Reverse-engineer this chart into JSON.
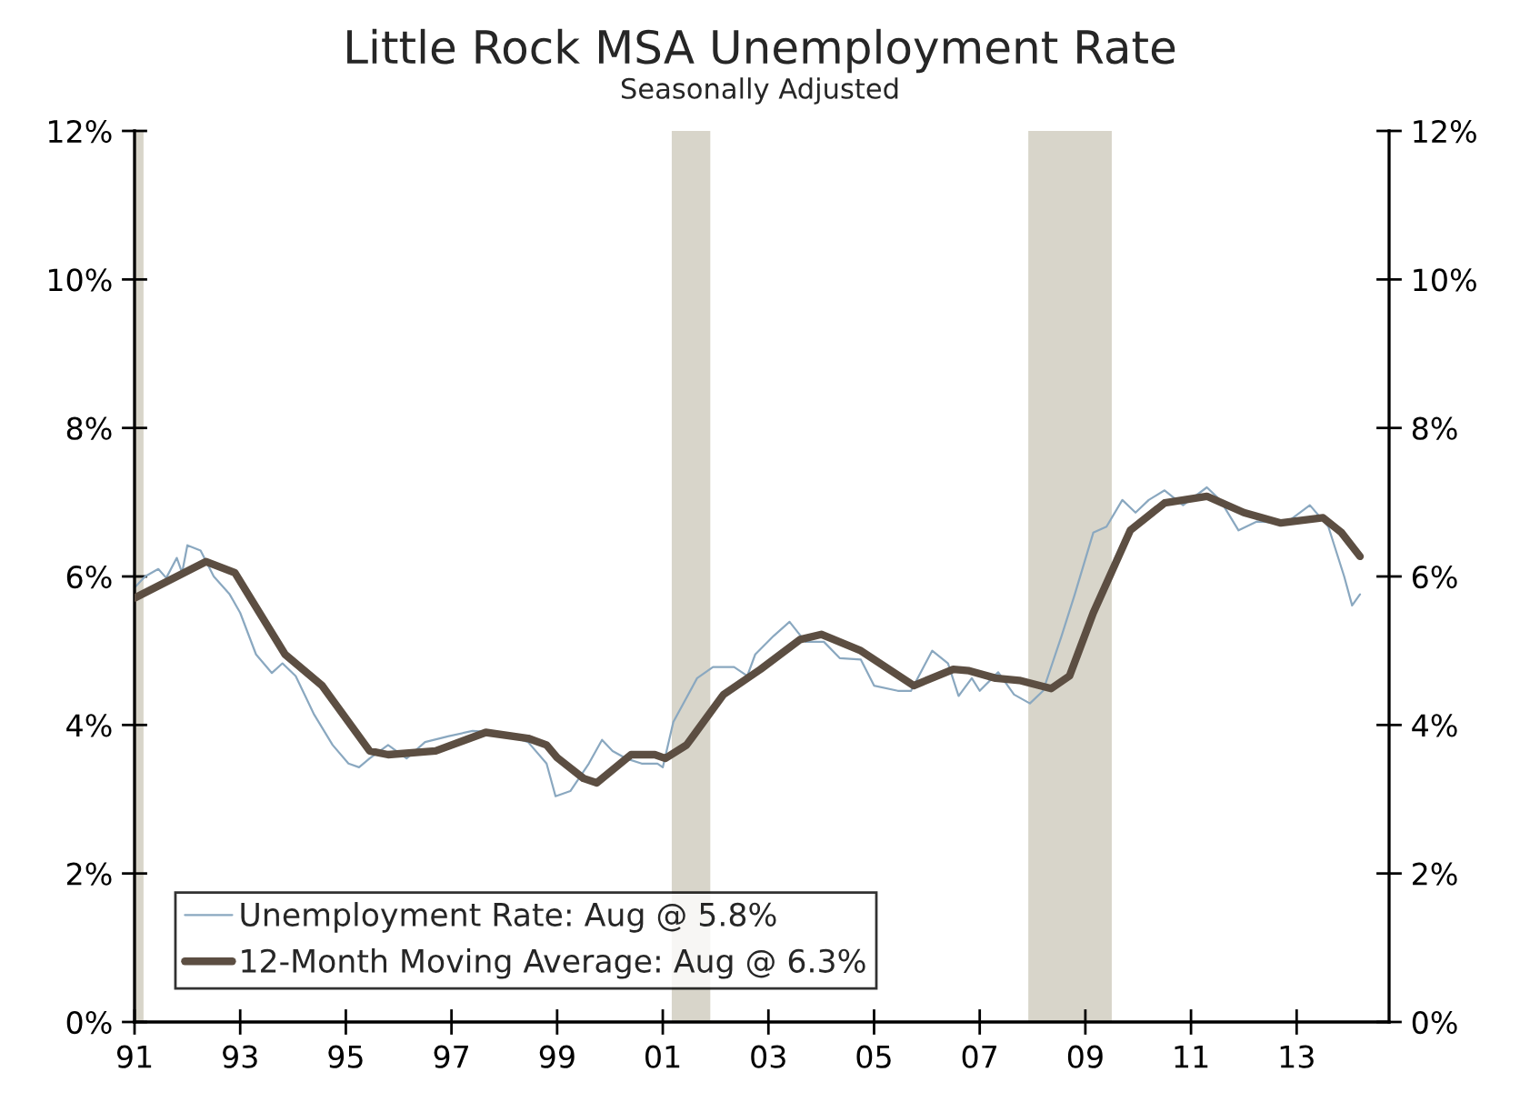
{
  "chart_data": {
    "type": "line",
    "title": "Little Rock MSA Unemployment Rate",
    "subtitle": "Seasonally Adjusted",
    "series": [
      {
        "name": "Unemployment Rate: Aug @ 5.8%",
        "color": "#8aa8c0",
        "x": [
          1991.0,
          1991.2,
          1991.45,
          1991.6,
          1991.8,
          1991.9,
          1992.0,
          1992.25,
          1992.5,
          1992.8,
          1993.0,
          1993.3,
          1993.6,
          1993.8,
          1994.05,
          1994.4,
          1994.75,
          1995.05,
          1995.25,
          1995.45,
          1995.8,
          1996.15,
          1996.5,
          1996.95,
          1997.4,
          1997.9,
          1998.45,
          1998.8,
          1998.97,
          1999.25,
          1999.6,
          1999.85,
          2000.05,
          2000.3,
          2000.6,
          2000.9,
          2001.0,
          2001.2,
          2001.65,
          2001.95,
          2002.35,
          2002.6,
          2002.75,
          2003.1,
          2003.4,
          2003.7,
          2004.05,
          2004.35,
          2004.75,
          2005.0,
          2005.45,
          2005.7,
          2006.1,
          2006.4,
          2006.6,
          2006.85,
          2007.0,
          2007.35,
          2007.65,
          2007.95,
          2008.2,
          2008.55,
          2008.8,
          2009.15,
          2009.4,
          2009.7,
          2009.95,
          2010.2,
          2010.5,
          2010.85,
          2011.3,
          2011.55,
          2011.9,
          2012.25,
          2012.8,
          2013.25,
          2013.6,
          2013.9,
          2014.05,
          2014.2
        ],
        "values": [
          5.85,
          6.0,
          6.1,
          5.98,
          6.25,
          6.05,
          6.42,
          6.35,
          6.0,
          5.76,
          5.51,
          4.95,
          4.7,
          4.83,
          4.66,
          4.14,
          3.73,
          3.48,
          3.43,
          3.55,
          3.73,
          3.55,
          3.77,
          3.85,
          3.92,
          3.9,
          3.77,
          3.48,
          3.04,
          3.11,
          3.48,
          3.8,
          3.65,
          3.55,
          3.48,
          3.48,
          3.43,
          4.04,
          4.63,
          4.78,
          4.78,
          4.66,
          4.95,
          5.2,
          5.39,
          5.12,
          5.12,
          4.9,
          4.88,
          4.53,
          4.46,
          4.46,
          5.0,
          4.83,
          4.39,
          4.63,
          4.46,
          4.71,
          4.41,
          4.29,
          4.46,
          5.2,
          5.76,
          6.59,
          6.67,
          7.03,
          6.86,
          7.03,
          7.16,
          6.96,
          7.2,
          7.03,
          6.62,
          6.74,
          6.72,
          6.96,
          6.67,
          6.0,
          5.61,
          5.76
        ]
      },
      {
        "name": "12-Month Moving Average: Aug @ 6.3%",
        "color": "#5c4e42",
        "x": [
          1991.0,
          1992.35,
          1992.9,
          1993.85,
          1994.55,
          1995.45,
          1995.8,
          1996.7,
          1997.65,
          1998.45,
          1998.8,
          1999.0,
          1999.5,
          1999.75,
          2000.4,
          2000.85,
          2001.05,
          2001.45,
          2002.15,
          2002.85,
          2003.6,
          2004.0,
          2004.75,
          2005.75,
          2006.5,
          2006.8,
          2007.3,
          2007.75,
          2008.35,
          2008.7,
          2009.15,
          2009.85,
          2010.5,
          2011.3,
          2012.0,
          2012.7,
          2013.5,
          2013.85,
          2014.2
        ],
        "values": [
          5.71,
          6.2,
          6.05,
          4.95,
          4.53,
          3.65,
          3.6,
          3.65,
          3.9,
          3.82,
          3.73,
          3.56,
          3.28,
          3.22,
          3.6,
          3.6,
          3.55,
          3.73,
          4.41,
          4.75,
          5.15,
          5.22,
          5.0,
          4.53,
          4.75,
          4.73,
          4.63,
          4.6,
          4.49,
          4.66,
          5.51,
          6.62,
          6.99,
          7.08,
          6.86,
          6.72,
          6.79,
          6.59,
          6.27
        ]
      }
    ],
    "bands": [
      {
        "axis": "x",
        "from": 1991.0,
        "to": 1991.17,
        "color": "#d8d5ca"
      },
      {
        "axis": "x",
        "from": 2001.17,
        "to": 2001.9,
        "color": "#d8d5ca"
      },
      {
        "axis": "x",
        "from": 2007.92,
        "to": 2009.5,
        "color": "#d8d5ca"
      }
    ],
    "xlim": [
      1991.0,
      2014.75
    ],
    "xticks": [
      {
        "value": 1991,
        "label": "91"
      },
      {
        "value": 1993,
        "label": "93"
      },
      {
        "value": 1995,
        "label": "95"
      },
      {
        "value": 1997,
        "label": "97"
      },
      {
        "value": 1999,
        "label": "99"
      },
      {
        "value": 2001,
        "label": "01"
      },
      {
        "value": 2003,
        "label": "03"
      },
      {
        "value": 2005,
        "label": "05"
      },
      {
        "value": 2007,
        "label": "07"
      },
      {
        "value": 2009,
        "label": "09"
      },
      {
        "value": 2011,
        "label": "11"
      },
      {
        "value": 2013,
        "label": "13"
      }
    ],
    "ylim": [
      0,
      12
    ],
    "yticks": [
      {
        "value": 0,
        "label": "0%"
      },
      {
        "value": 2,
        "label": "2%"
      },
      {
        "value": 4,
        "label": "4%"
      },
      {
        "value": 6,
        "label": "6%"
      },
      {
        "value": 8,
        "label": "8%"
      },
      {
        "value": 10,
        "label": "10%"
      },
      {
        "value": 12,
        "label": "12%"
      }
    ],
    "y2lim": [
      0,
      12
    ],
    "y2ticks": [
      {
        "value": 0,
        "label": "0%"
      },
      {
        "value": 2,
        "label": "2%"
      },
      {
        "value": 4,
        "label": "4%"
      },
      {
        "value": 6,
        "label": "6%"
      },
      {
        "value": 8,
        "label": "8%"
      },
      {
        "value": 10,
        "label": "10%"
      },
      {
        "value": 12,
        "label": "12%"
      }
    ],
    "legend": "bottom left",
    "grid": false,
    "marker": "none",
    "line_style": "solid"
  }
}
